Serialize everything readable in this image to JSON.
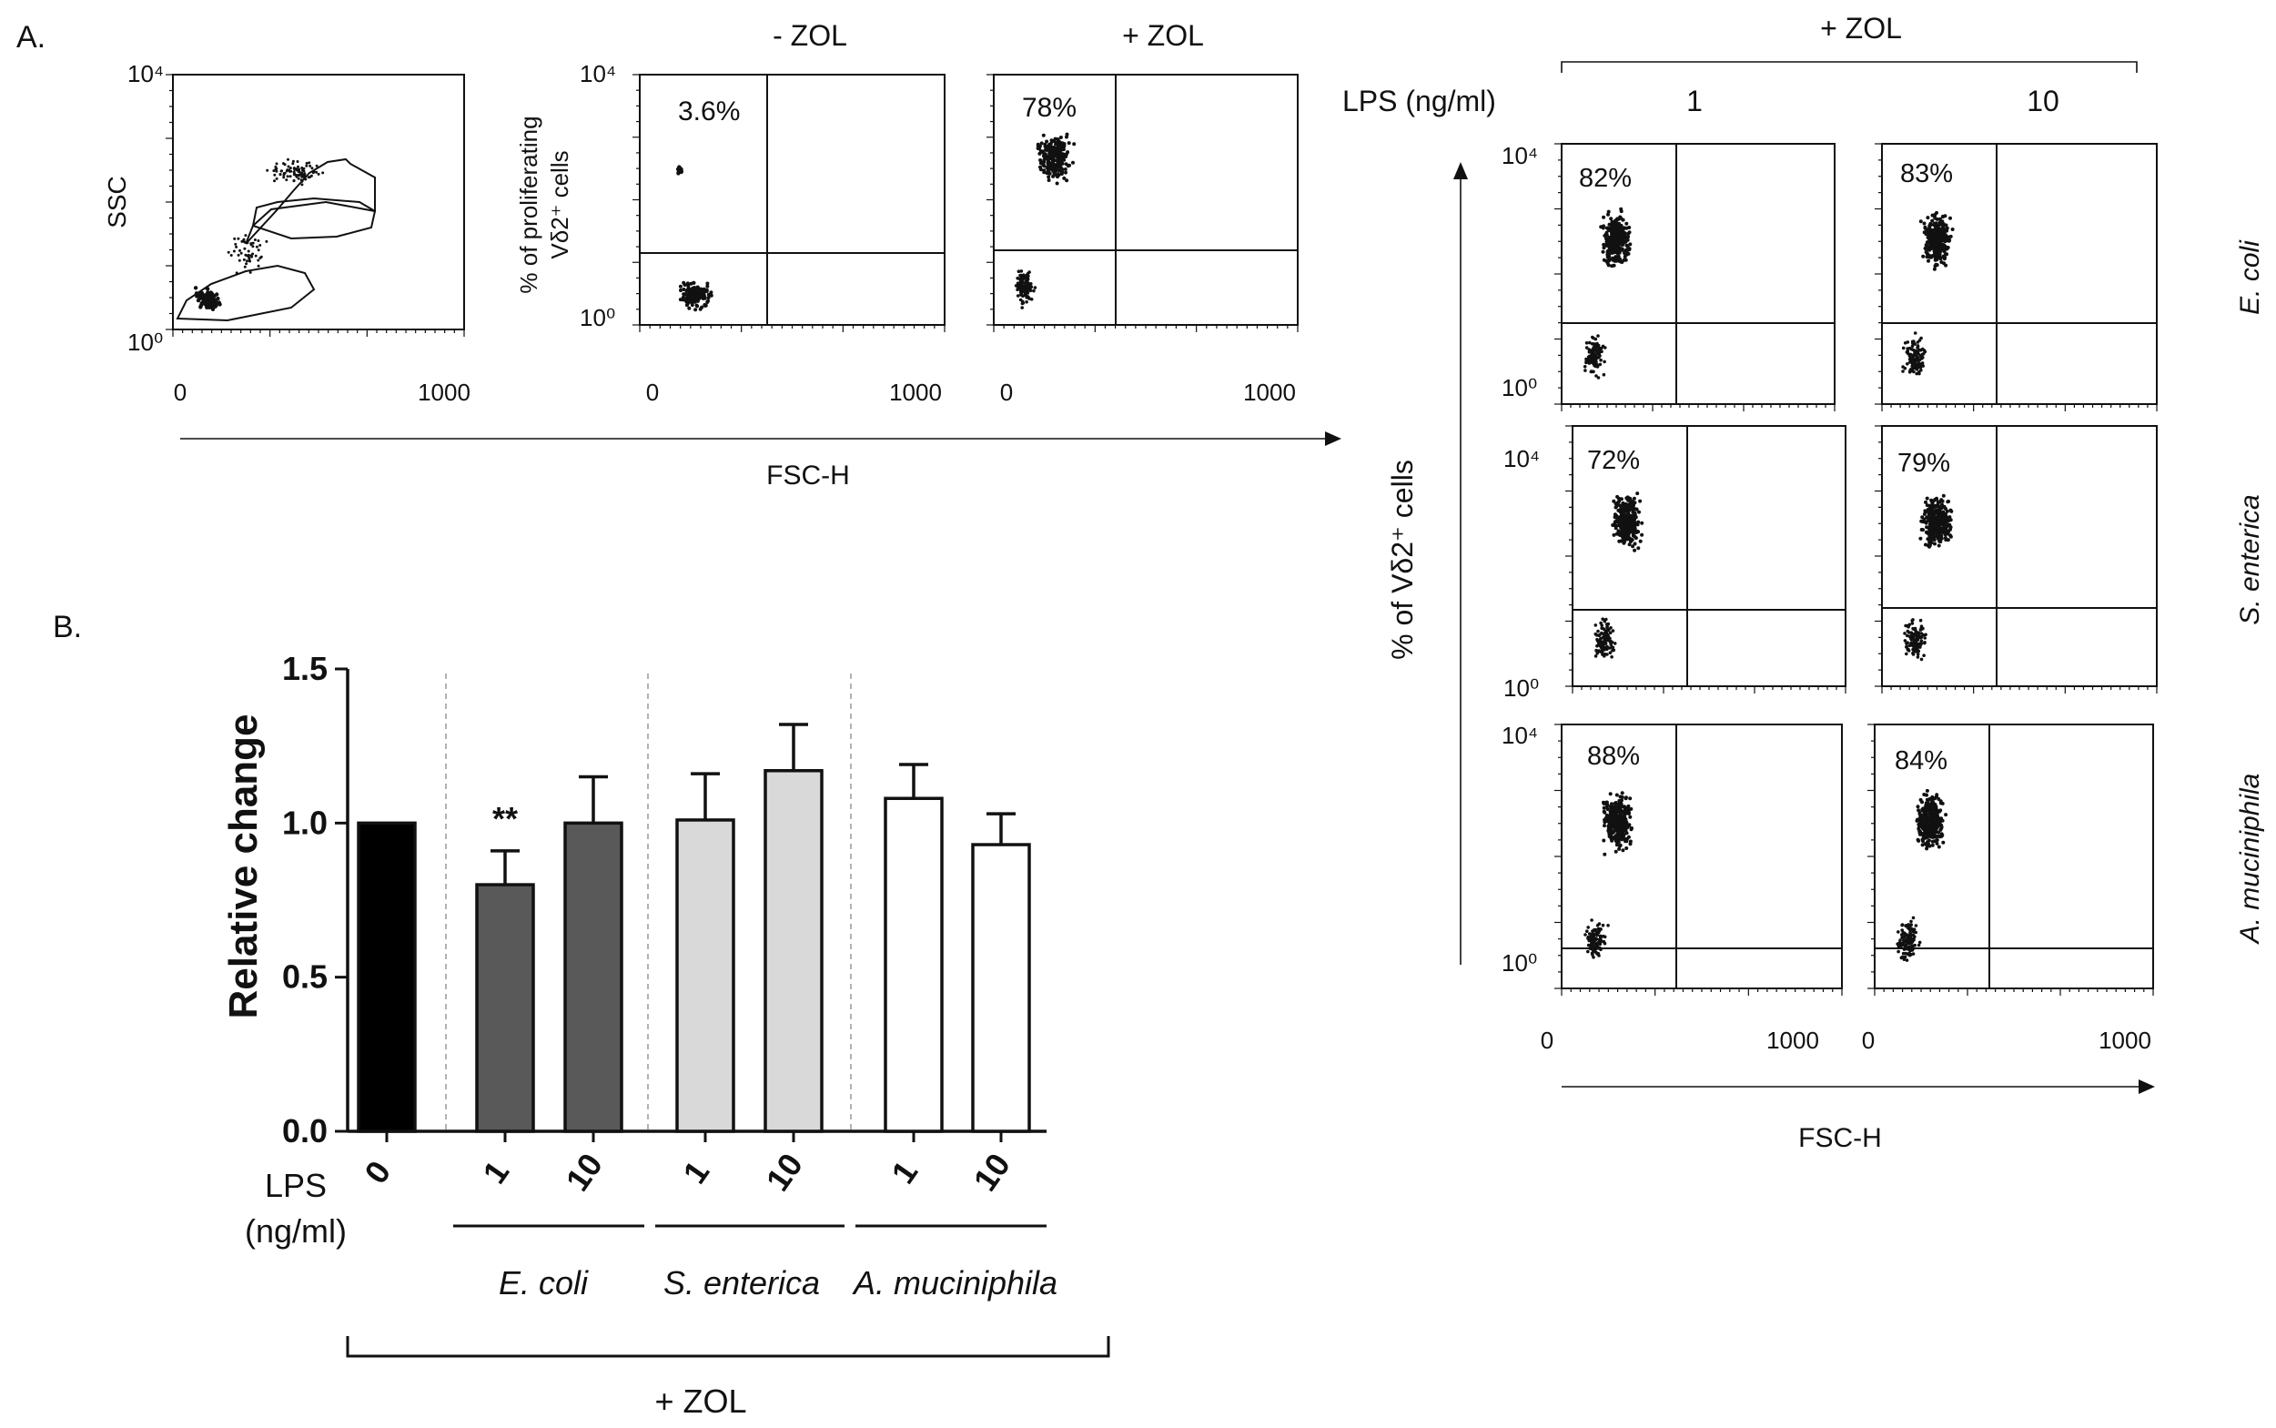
{
  "panel_labels": {
    "a": "A.",
    "b": "B."
  },
  "panel_a": {
    "headers": {
      "minus_zol": "- ZOL",
      "plus_zol": "+ ZOL",
      "right_plus_zol": "+ ZOL",
      "lps_label": "LPS (ng/ml)",
      "lps_1": "1",
      "lps_10": "10"
    },
    "x_label_left": "FSC-H",
    "x_label_right": "FSC-H",
    "right_y_label": "% of Vδ2⁺ cells",
    "ssc_label": "SSC",
    "prolif_label_line1": "% of  proliferating",
    "prolif_label_line2": "Vδ2⁺ cells",
    "tick_10_4": "10⁴",
    "tick_10_0": "10⁰",
    "tick_0": "0",
    "tick_1000": "1000",
    "plots": {
      "minus_zol_pct": "3.6%",
      "plus_zol_pct": "78%",
      "ecoli_1_pct": "82%",
      "ecoli_10_pct": "83%",
      "senterica_1_pct": "72%",
      "senterica_10_pct": "79%",
      "amuc_1_pct": "88%",
      "amuc_10_pct": "84%"
    },
    "row_labels": {
      "ecoli": "E. coli",
      "senterica": "S. enterica",
      "amuc": "A. muciniphila"
    }
  },
  "chart_data": {
    "type": "bar",
    "ylabel": "Relative change",
    "ylim": [
      0,
      1.5
    ],
    "yticks": [
      "0.0",
      "0.5",
      "1.0",
      "1.5"
    ],
    "categories": [
      "0",
      "1",
      "10",
      "1",
      "10",
      "1",
      "10"
    ],
    "values": [
      1.0,
      0.8,
      1.0,
      1.01,
      1.17,
      1.08,
      0.93
    ],
    "errors": [
      0,
      0.11,
      0.15,
      0.15,
      0.15,
      0.11,
      0.1
    ],
    "colors": [
      "#000000",
      "#595959",
      "#595959",
      "#d9d9d9",
      "#d9d9d9",
      "#ffffff",
      "#ffffff"
    ],
    "significance": "**",
    "lps_label_line1": "LPS",
    "lps_label_line2": "(ng/ml)",
    "groups": [
      "E. coli",
      "S. enterica",
      "A. muciniphila"
    ],
    "treatment": "+ ZOL"
  }
}
